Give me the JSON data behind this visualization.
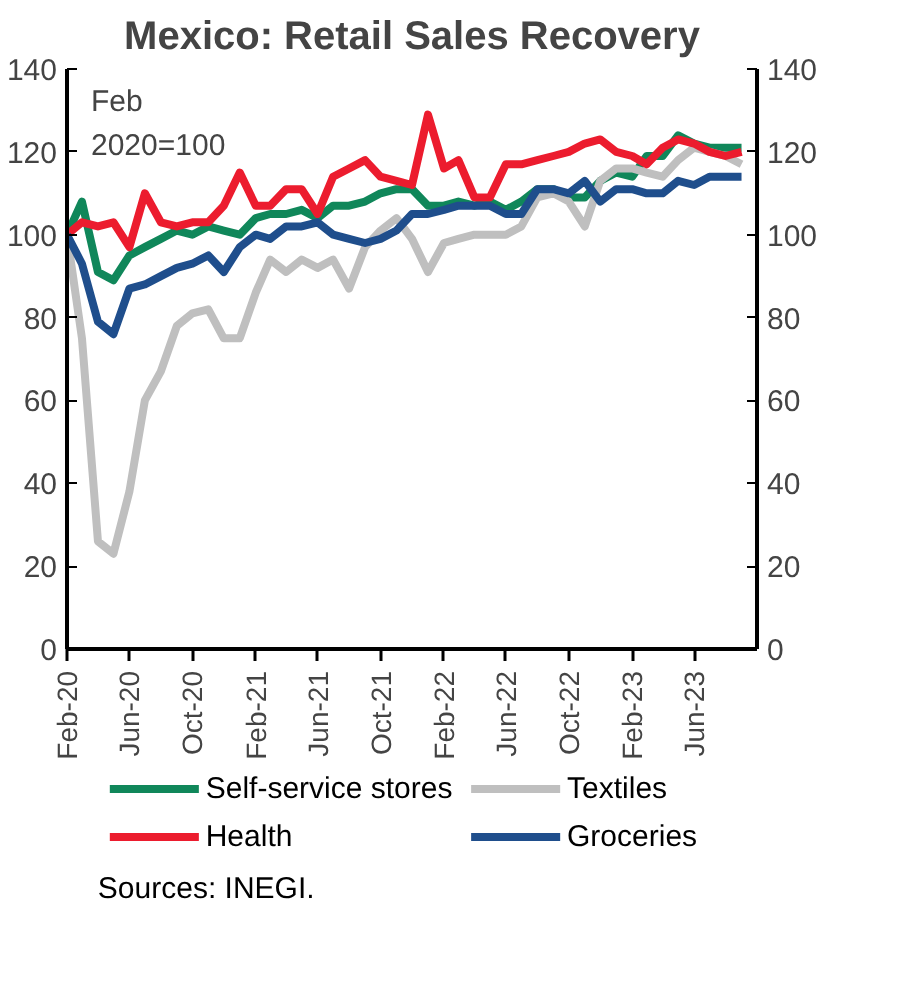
{
  "chart_data": {
    "type": "line",
    "title": "Mexico: Retail Sales Recovery",
    "annotations": [
      "Feb\n2020=100",
      "Sources: INEGI."
    ],
    "x": [
      "2020-02",
      "2020-03",
      "2020-04",
      "2020-05",
      "2020-06",
      "2020-07",
      "2020-08",
      "2020-09",
      "2020-10",
      "2020-11",
      "2020-12",
      "2021-01",
      "2021-02",
      "2021-03",
      "2021-04",
      "2021-05",
      "2021-06",
      "2021-07",
      "2021-08",
      "2021-09",
      "2021-10",
      "2021-11",
      "2021-12",
      "2022-01",
      "2022-02",
      "2022-03",
      "2022-04",
      "2022-05",
      "2022-06",
      "2022-07",
      "2022-08",
      "2022-09",
      "2022-10",
      "2022-11",
      "2022-12",
      "2023-01",
      "2023-02",
      "2023-03",
      "2023-04",
      "2023-05",
      "2023-06",
      "2023-07",
      "2023-08",
      "2023-09"
    ],
    "xlim": [
      "2020-02",
      "2023-10"
    ],
    "xticks": [
      {
        "value": "2020-02",
        "label": "Feb-20"
      },
      {
        "value": "2020-06",
        "label": "Jun-20"
      },
      {
        "value": "2020-10",
        "label": "Oct-20"
      },
      {
        "value": "2021-02",
        "label": "Feb-21"
      },
      {
        "value": "2021-06",
        "label": "Jun-21"
      },
      {
        "value": "2021-10",
        "label": "Oct-21"
      },
      {
        "value": "2022-02",
        "label": "Feb-22"
      },
      {
        "value": "2022-06",
        "label": "Jun-22"
      },
      {
        "value": "2022-10",
        "label": "Oct-22"
      },
      {
        "value": "2023-02",
        "label": "Feb-23"
      },
      {
        "value": "2023-06",
        "label": "Jun-23"
      }
    ],
    "ylim": [
      0,
      140
    ],
    "yticks": [
      0,
      20,
      40,
      60,
      80,
      100,
      120,
      140
    ],
    "y2lim": [
      0,
      140
    ],
    "y2ticks": [
      0,
      20,
      40,
      60,
      80,
      100,
      120,
      140
    ],
    "grid": false,
    "legend": "bottom",
    "line_style": "solid",
    "marker": "none",
    "series": [
      {
        "name": "Self-service stores",
        "color": "#10875a",
        "values": [
          100,
          108,
          91,
          89,
          95,
          97,
          99,
          101,
          100,
          102,
          101,
          100,
          104,
          105,
          105,
          106,
          104,
          107,
          107,
          108,
          110,
          111,
          111,
          107,
          107,
          108,
          107,
          108,
          106,
          108,
          111,
          111,
          109,
          109,
          113,
          115,
          114,
          119,
          119,
          124,
          122,
          121,
          121,
          121
        ]
      },
      {
        "name": "Textiles",
        "color": "#bfbfbf",
        "values": [
          100,
          75,
          26,
          23,
          38,
          60,
          67,
          78,
          81,
          82,
          75,
          75,
          86,
          94,
          91,
          94,
          92,
          94,
          87,
          97,
          101,
          104,
          99,
          91,
          98,
          99,
          100,
          100,
          100,
          102,
          109,
          110,
          108,
          102,
          113,
          116,
          116,
          115,
          114,
          118,
          121,
          120,
          119,
          117
        ]
      },
      {
        "name": "Health",
        "color": "#ec1c2e",
        "values": [
          100,
          103,
          102,
          103,
          97,
          110,
          103,
          102,
          103,
          103,
          107,
          115,
          107,
          107,
          111,
          111,
          105,
          114,
          116,
          118,
          114,
          113,
          112,
          129,
          116,
          118,
          109,
          109,
          117,
          117,
          118,
          119,
          120,
          122,
          123,
          120,
          119,
          117,
          121,
          123,
          122,
          120,
          119,
          120
        ]
      },
      {
        "name": "Groceries",
        "color": "#1f4e8c",
        "values": [
          100,
          93,
          79,
          76,
          87,
          88,
          90,
          92,
          93,
          95,
          91,
          97,
          100,
          99,
          102,
          102,
          103,
          100,
          99,
          98,
          99,
          101,
          105,
          105,
          106,
          107,
          107,
          107,
          105,
          105,
          111,
          111,
          110,
          113,
          108,
          111,
          111,
          110,
          110,
          113,
          112,
          114,
          114,
          114
        ]
      }
    ]
  }
}
